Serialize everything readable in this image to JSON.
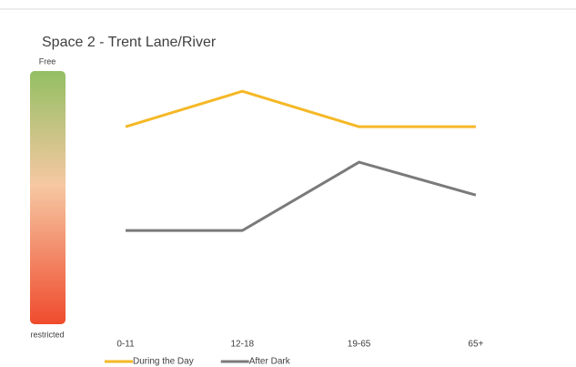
{
  "chart_data": {
    "type": "line",
    "title": "Space 2 - Trent Lane/River",
    "scale": {
      "top": "Free",
      "bottom": "restricted"
    },
    "categories": [
      "0-11",
      "12-18",
      "19-65",
      "65+"
    ],
    "series": [
      {
        "name": "During the Day",
        "color": "#f5b827",
        "values": [
          7.8,
          9.2,
          7.8,
          7.8
        ]
      },
      {
        "name": "After Dark",
        "color": "#7a7a7a",
        "values": [
          3.7,
          3.7,
          6.4,
          5.1
        ]
      }
    ],
    "ylim": [
      0,
      10
    ]
  }
}
